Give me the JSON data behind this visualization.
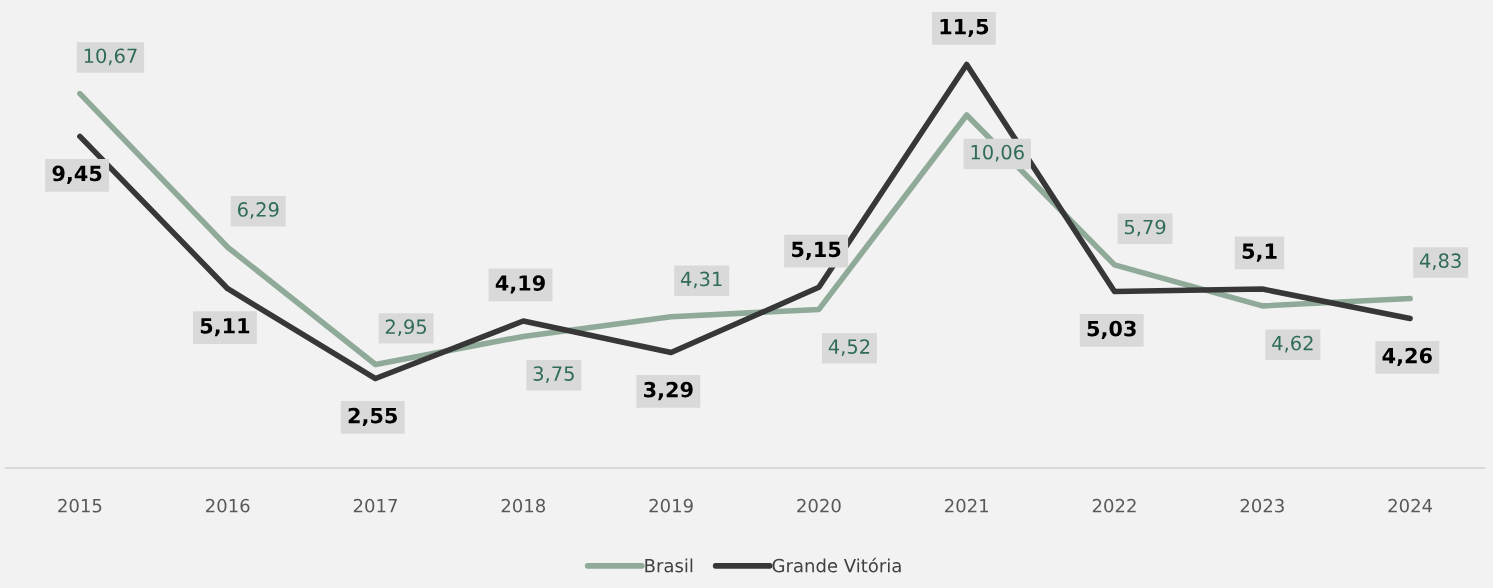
{
  "chart_data": {
    "type": "line",
    "categories": [
      "2015",
      "2016",
      "2017",
      "2018",
      "2019",
      "2020",
      "2021",
      "2022",
      "2023",
      "2024"
    ],
    "series": [
      {
        "name": "Brasil",
        "color": "#8faa98",
        "values": [
          10.67,
          6.29,
          2.95,
          3.75,
          4.31,
          4.52,
          10.06,
          5.79,
          4.62,
          4.83
        ],
        "value_labels": [
          "10,67",
          "6,29",
          "2,95",
          "3,75",
          "4,31",
          "4,52",
          "10,06",
          "5,79",
          "4,62",
          "4,83"
        ]
      },
      {
        "name": "Grande Vitória",
        "color": "#373737",
        "values": [
          9.45,
          5.11,
          2.55,
          4.19,
          3.29,
          5.15,
          11.5,
          5.03,
          5.1,
          4.26
        ],
        "value_labels": [
          "9,45",
          "5,11",
          "2,55",
          "4,19",
          "3,29",
          "5,15",
          "11,5",
          "5,03",
          "5,1",
          "4,26"
        ]
      }
    ],
    "tick_labels": "x",
    "grid": false,
    "legend": "bottom",
    "marker": "none",
    "line_style": "solid"
  }
}
